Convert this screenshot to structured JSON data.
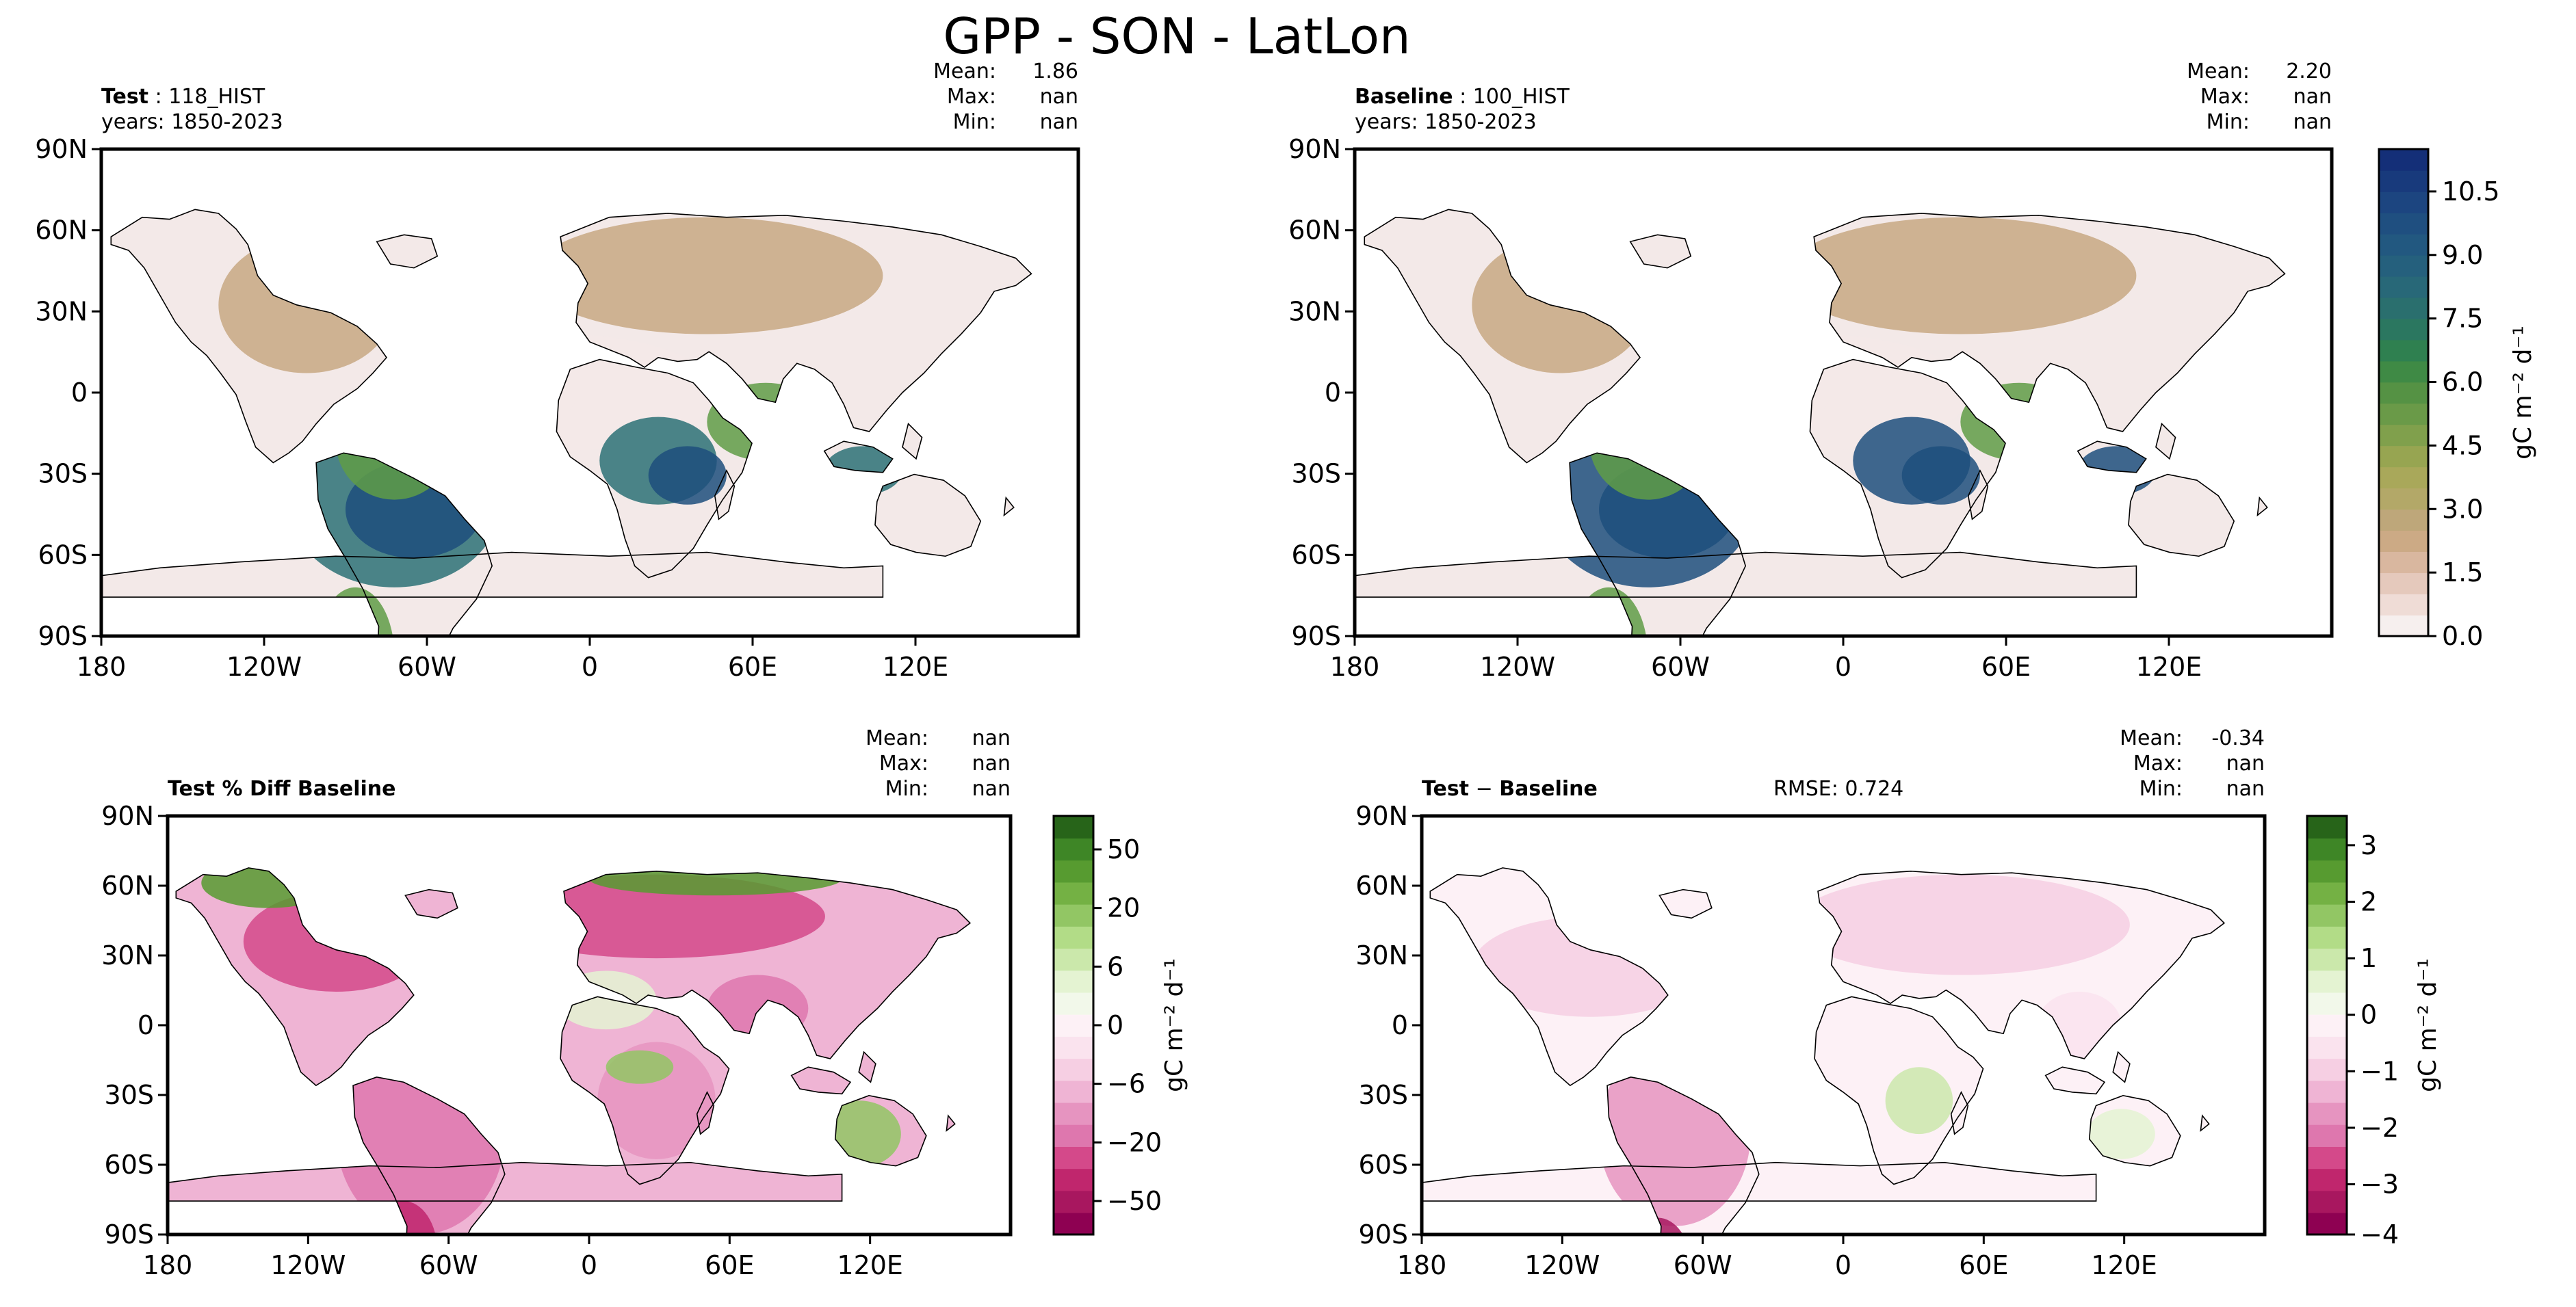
{
  "figure_title": "GPP - SON - LatLon",
  "colors": {
    "land_low": "#f3e9e8",
    "land_brown": "#c7a882",
    "land_olive": "#a9a85a",
    "land_green": "#5f9c46",
    "land_teal": "#2c7175",
    "land_navy": "#1d4f7c",
    "ocean": "#ffffff",
    "coast": "#000000"
  },
  "chart_data": [
    {
      "type": "heatmap",
      "panel": "test",
      "title_bold": "Test",
      "title_sep": ":",
      "title_rest": "118_HIST",
      "years": "years: 1850-2023",
      "stats": {
        "mean_label": "Mean:",
        "mean": "1.86",
        "max_label": "Max:",
        "max": "nan",
        "min_label": "Min:",
        "min": "nan"
      },
      "x_ticks": [
        "180",
        "120W",
        "60W",
        "0",
        "60E",
        "120E"
      ],
      "y_ticks": [
        "90N",
        "60N",
        "30N",
        "0",
        "30S",
        "60S",
        "90S"
      ],
      "field": "GPP absolute",
      "xlim": [
        -180,
        180
      ],
      "ylim": [
        -90,
        90
      ]
    },
    {
      "type": "heatmap",
      "panel": "baseline",
      "title_bold": "Baseline",
      "title_sep": ":",
      "title_rest": "100_HIST",
      "years": "years: 1850-2023",
      "stats": {
        "mean_label": "Mean:",
        "mean": "2.20",
        "max_label": "Max:",
        "max": "nan",
        "min_label": "Min:",
        "min": "nan"
      },
      "x_ticks": [
        "180",
        "120W",
        "60W",
        "0",
        "60E",
        "120E"
      ],
      "y_ticks": [
        "90N",
        "60N",
        "30N",
        "0",
        "30S",
        "60S",
        "90S"
      ],
      "colorbar": {
        "label": "gC m⁻² d⁻¹",
        "ticks": [
          "0.0",
          "1.5",
          "3.0",
          "4.5",
          "6.0",
          "7.5",
          "9.0",
          "10.5"
        ],
        "range": [
          0,
          11.5
        ],
        "colors": [
          "#f6efee",
          "#efdcd6",
          "#e5c9bc",
          "#d9b79f",
          "#ccaa85",
          "#bea77a",
          "#b3a868",
          "#a9a85a",
          "#97a551",
          "#80a04c",
          "#6a9a48",
          "#559244",
          "#3f8a45",
          "#2f8050",
          "#2b7760",
          "#2a6f6e",
          "#286878",
          "#25607d",
          "#225880",
          "#1f4f80",
          "#1c4580",
          "#183a7c",
          "#142f78"
        ]
      },
      "field": "GPP absolute"
    },
    {
      "type": "heatmap",
      "panel": "pct_diff",
      "title": "Test % Diff Baseline",
      "stats": {
        "mean_label": "Mean:",
        "mean": "nan",
        "max_label": "Max:",
        "max": "nan",
        "min_label": "Min:",
        "min": "nan"
      },
      "x_ticks": [
        "180",
        "120W",
        "60W",
        "0",
        "60E",
        "120E"
      ],
      "y_ticks": [
        "90N",
        "60N",
        "30N",
        "0",
        "30S",
        "60S",
        "90S"
      ],
      "colorbar": {
        "label": "gC m⁻² d⁻¹",
        "ticks": [
          "50",
          "20",
          "6",
          "0",
          "−6",
          "−20",
          "−50"
        ],
        "colors": [
          "#8e0152",
          "#a8175f",
          "#c0266d",
          "#d4498a",
          "#de77ae",
          "#e694c0",
          "#efb4d4",
          "#f6cfe3",
          "#fae3ee",
          "#fdf1f6",
          "#f2f8ea",
          "#e4f3d2",
          "#cbe8ab",
          "#b2dc87",
          "#92c664",
          "#74b144",
          "#579b30",
          "#3e8626",
          "#276419"
        ]
      },
      "field": "percent difference"
    },
    {
      "type": "heatmap",
      "panel": "diff",
      "title_bold": "Test",
      "title_sep": "−",
      "title_rest": "Baseline",
      "rmse": "RMSE: 0.724",
      "stats": {
        "mean_label": "Mean:",
        "mean": "-0.34",
        "max_label": "Max:",
        "max": "nan",
        "min_label": "Min:",
        "min": "nan"
      },
      "x_ticks": [
        "180",
        "120W",
        "60W",
        "0",
        "60E",
        "120E"
      ],
      "y_ticks": [
        "90N",
        "60N",
        "30N",
        "0",
        "30S",
        "60S",
        "90S"
      ],
      "colorbar": {
        "label": "gC m⁻² d⁻¹",
        "ticks": [
          "3",
          "2",
          "1",
          "0",
          "−1",
          "−2",
          "−3",
          "−4"
        ],
        "colors": [
          "#8e0152",
          "#a8175f",
          "#c0266d",
          "#d4498a",
          "#de77ae",
          "#e694c0",
          "#efb4d4",
          "#f6cfe3",
          "#fae3ee",
          "#fdf1f6",
          "#f2f8ea",
          "#e4f3d2",
          "#cbe8ab",
          "#b2dc87",
          "#92c664",
          "#74b144",
          "#579b30",
          "#3e8626",
          "#276419"
        ]
      },
      "field": "absolute difference"
    }
  ]
}
